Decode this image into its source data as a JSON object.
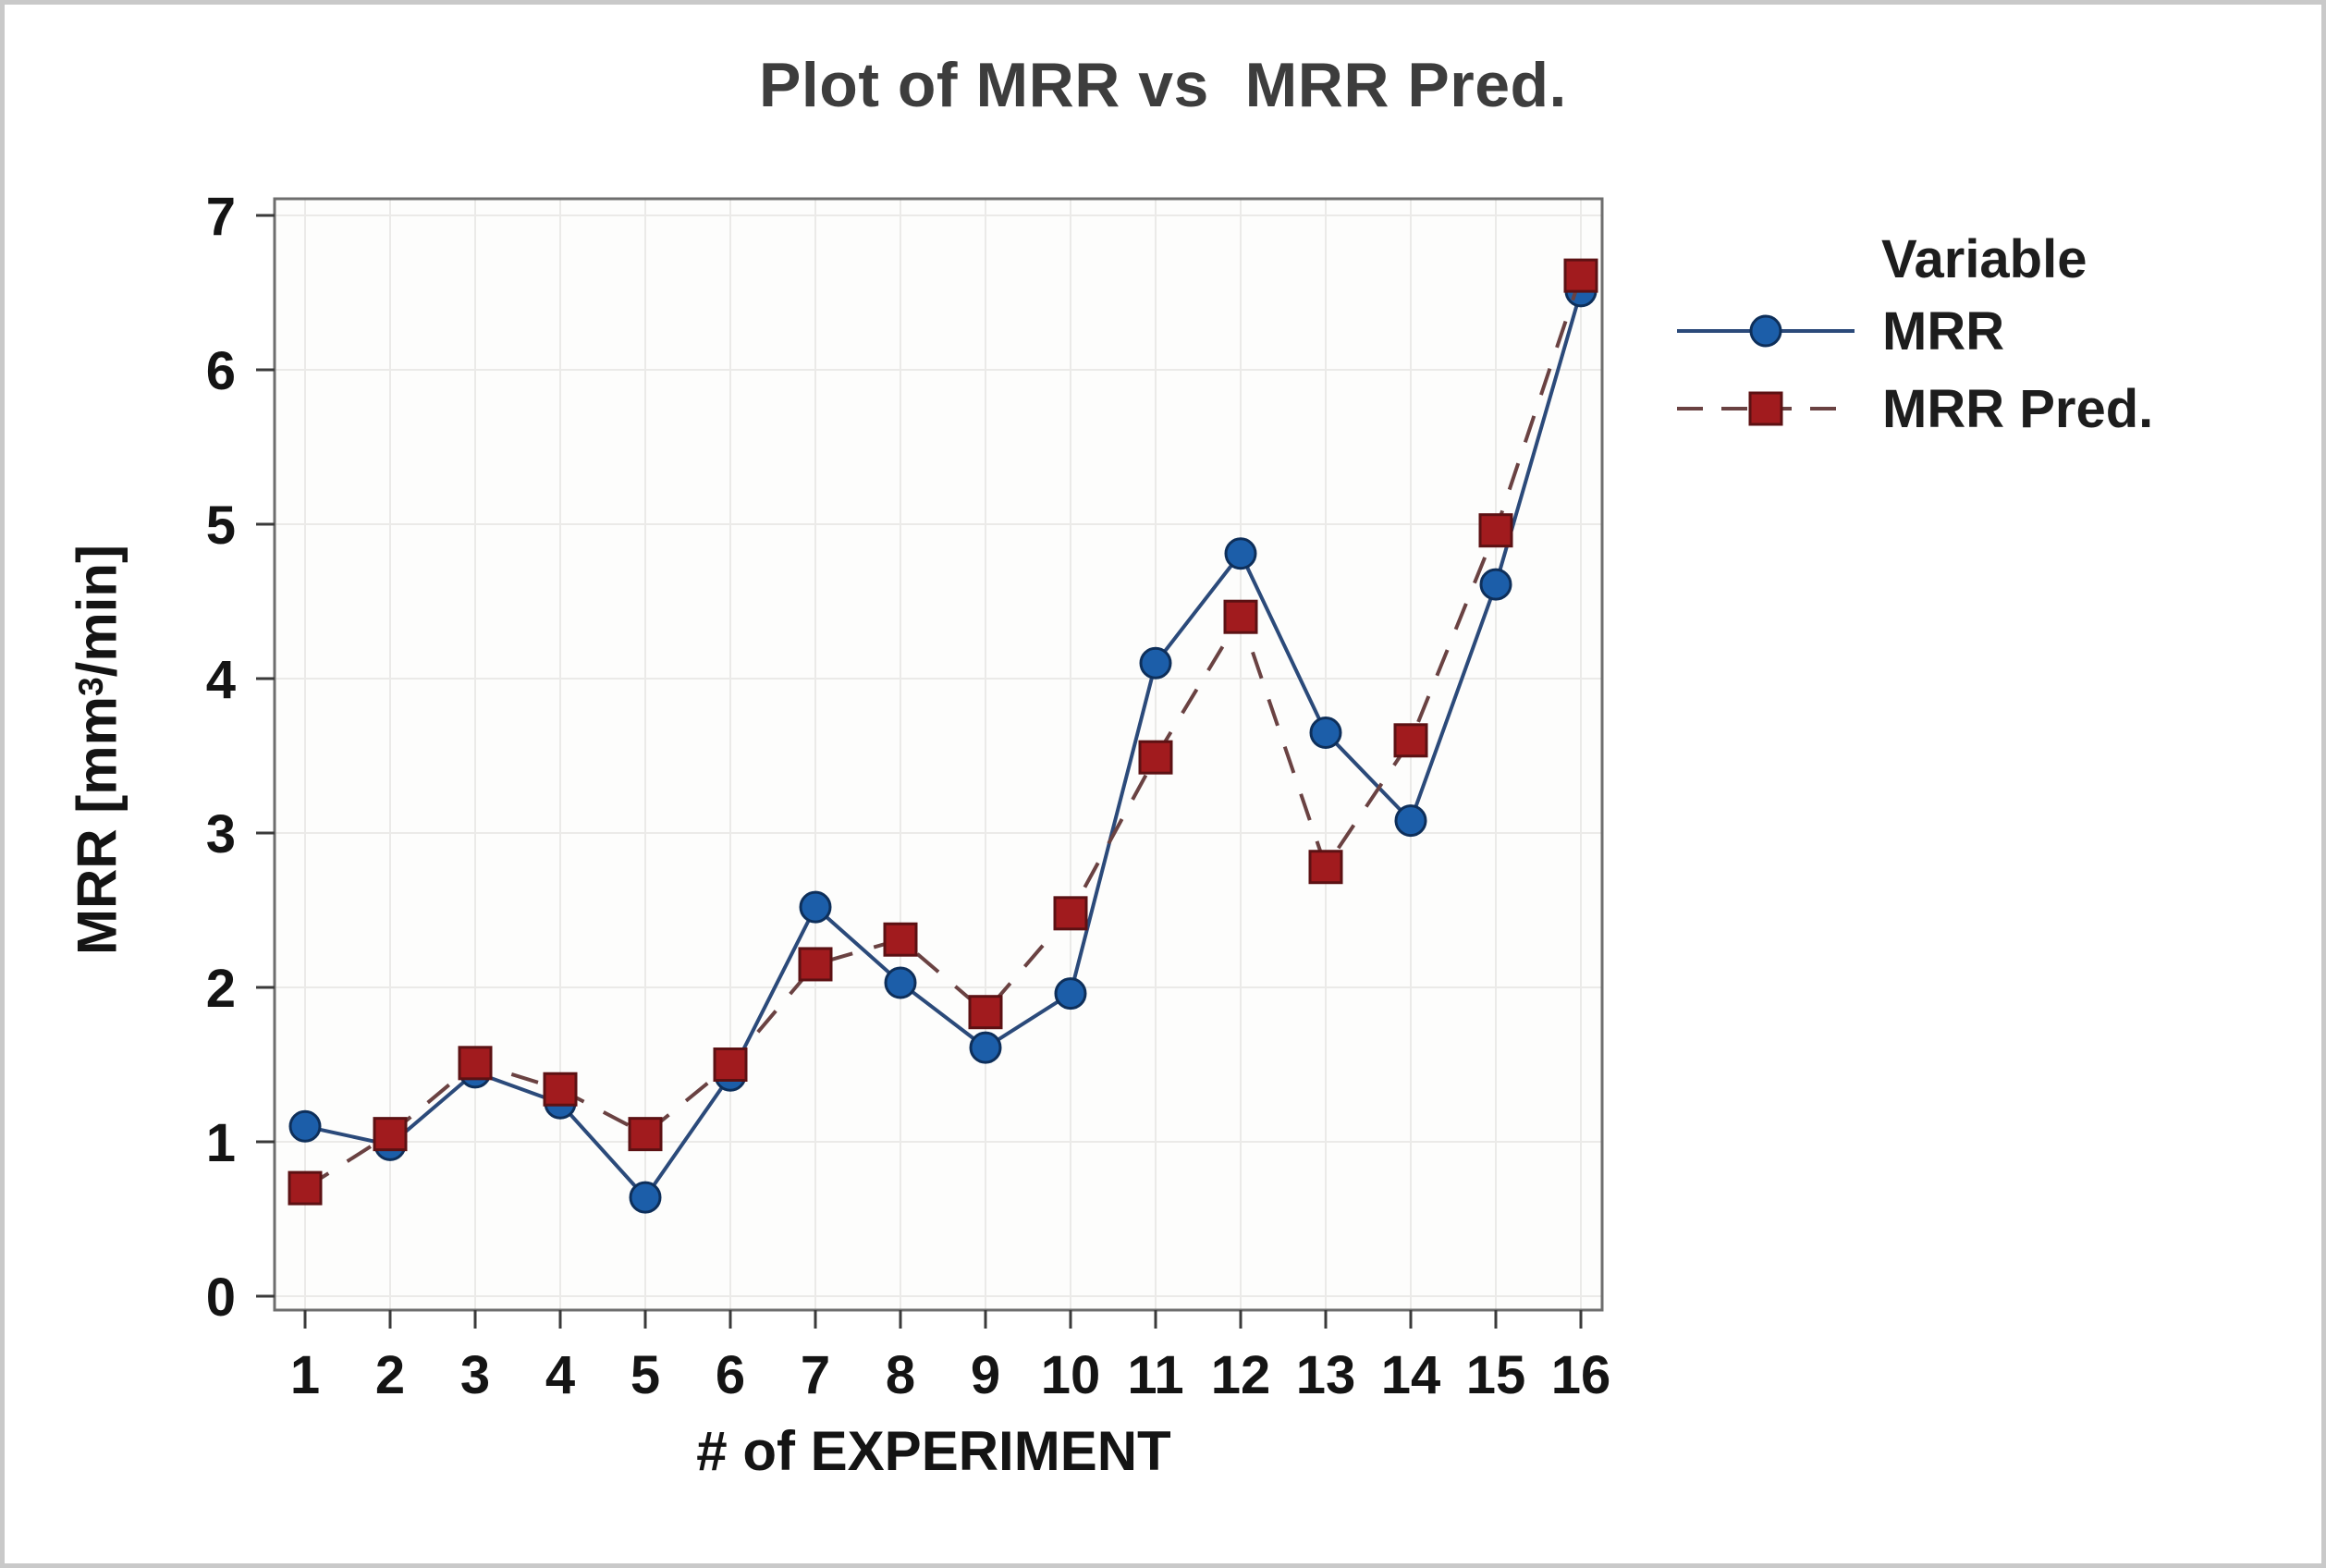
{
  "figure": {
    "title": "Plot of MRR vs  MRR Pred.",
    "x_axis_label": "# of EXPERIMENT",
    "y_axis_label": {
      "prefix": "MRR [mm",
      "sup": "3",
      "suffix": "/min]"
    }
  },
  "legend": {
    "title": "Variable"
  },
  "colors": {
    "title_text": "#3d3d3d",
    "text": "#141414",
    "grid": "#ebeae8",
    "plot_border": "#6e6e6e",
    "plot_background": "#fdfdfc",
    "tick": "#3a3a3a",
    "frame_border": "#c9c9c9"
  },
  "chart_data": {
    "type": "line",
    "title": "Plot of MRR vs  MRR Pred.",
    "xlabel": "# of EXPERIMENT",
    "ylabel": "MRR [mm³/min]",
    "x": [
      1,
      2,
      3,
      4,
      5,
      6,
      7,
      8,
      9,
      10,
      11,
      12,
      13,
      14,
      15,
      16
    ],
    "series": [
      {
        "name": "MRR",
        "values": [
          1.1,
          0.98,
          1.45,
          1.25,
          0.64,
          1.43,
          2.52,
          2.03,
          1.61,
          1.96,
          4.1,
          4.81,
          3.65,
          3.08,
          4.61,
          6.51
        ],
        "marker": "circle",
        "line_style": "solid",
        "line_color": "#2b4a7a",
        "marker_color": "#1c5ea9",
        "marker_stroke": "#0e2f5a"
      },
      {
        "name": "MRR Pred.",
        "values": [
          0.7,
          1.05,
          1.51,
          1.34,
          1.05,
          1.5,
          2.15,
          2.31,
          1.84,
          2.48,
          3.49,
          4.4,
          2.78,
          3.6,
          4.96,
          6.61
        ],
        "marker": "square",
        "line_style": "dashed",
        "line_color": "#6a4242",
        "marker_color": "#a11b1e",
        "marker_stroke": "#5c1113"
      }
    ],
    "xticks": [
      1,
      2,
      3,
      4,
      5,
      6,
      7,
      8,
      9,
      10,
      11,
      12,
      13,
      14,
      15,
      16
    ],
    "yticks": [
      0,
      1,
      2,
      3,
      4,
      5,
      6,
      7
    ],
    "ylim": [
      0,
      7
    ],
    "grid": true,
    "legend_position": "right",
    "legend_title": "Variable"
  }
}
